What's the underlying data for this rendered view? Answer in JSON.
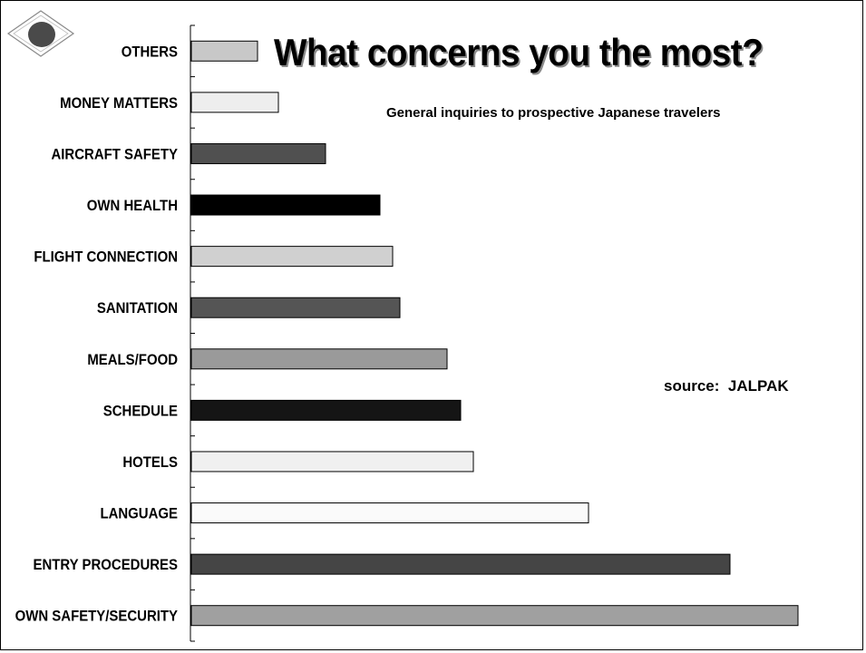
{
  "page": {
    "title": "What concerns you the most?",
    "subtitle": "General inquiries to prospective Japanese travelers",
    "source_label": "source:",
    "source_value": "JALPAK"
  },
  "logo": {
    "icon": "diamond-eye-logo",
    "colors": {
      "diamond_fill": "#ffffff",
      "diamond_stroke": "#808080",
      "circle": "#4a4a4a"
    }
  },
  "chart_data": {
    "type": "bar",
    "orientation": "horizontal",
    "categories": [
      "OTHERS",
      "MONEY MATTERS",
      "AIRCRAFT SAFETY",
      "OWN HEALTH",
      "FLIGHT CONNECTION",
      "SANITATION",
      "MEALS/FOOD",
      "SCHEDULE",
      "HOTELS",
      "LANGUAGE",
      "ENTRY PROCEDURES",
      "OWN SAFETY/SECURITY"
    ],
    "values": [
      73,
      96,
      148,
      208,
      222,
      230,
      282,
      297,
      311,
      438,
      594,
      669
    ],
    "colors": [
      "#c8c8c8",
      "#eeeeee",
      "#505050",
      "#000000",
      "#d0d0d0",
      "#555555",
      "#9a9a9a",
      "#151515",
      "#f0f0f0",
      "#fafafa",
      "#454545",
      "#a0a0a0"
    ],
    "title": "What concerns you the most?",
    "subtitle": "General inquiries to prospective Japanese travelers",
    "xlabel": "",
    "ylabel": "",
    "xlim": [
      0,
      690
    ],
    "grid": false,
    "legend": "none"
  }
}
